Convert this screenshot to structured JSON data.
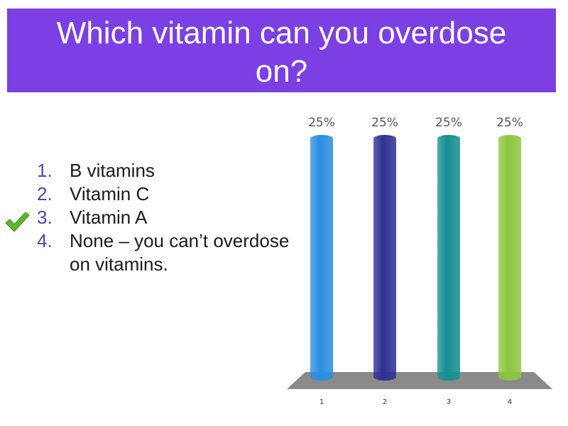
{
  "slide": {
    "title_line1": "Which vitamin can you overdose",
    "title_line2": "on?",
    "accent_color": "#7c3fe4"
  },
  "answers": [
    {
      "number": "1.",
      "text": "B vitamins"
    },
    {
      "number": "2.",
      "text": "Vitamin C"
    },
    {
      "number": "3.",
      "text": "Vitamin A",
      "correct": true,
      "marker_icon": "checkmark-icon"
    },
    {
      "number": "4.",
      "text": "None – you can’t overdose on vitamins."
    }
  ],
  "chart_data": {
    "type": "bar",
    "title": "",
    "categories": [
      "1",
      "2",
      "3",
      "4"
    ],
    "values": [
      25,
      25,
      25,
      25
    ],
    "value_labels": [
      "25%",
      "25%",
      "25%",
      "25%"
    ],
    "colors": [
      "#2a8ee0",
      "#2e3192",
      "#159090",
      "#8cc63f"
    ],
    "ylim": [
      0,
      25
    ],
    "grid": false
  }
}
